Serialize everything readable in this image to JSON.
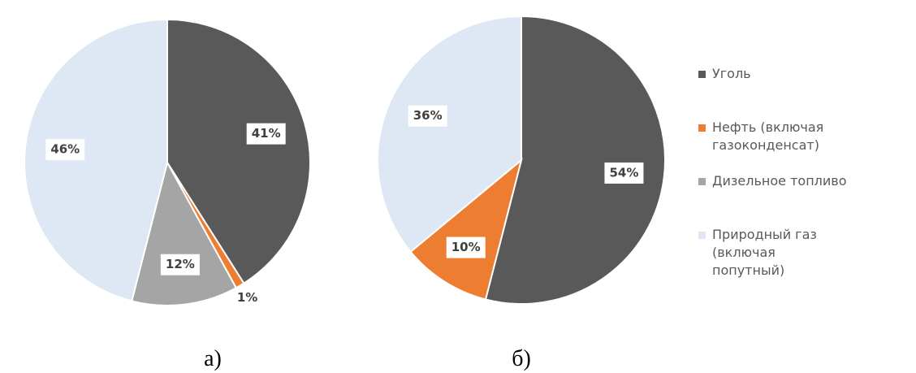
{
  "chart_data": [
    {
      "type": "pie",
      "title": "а)",
      "categories": [
        "Уголь",
        "Нефть (включая газоконденсат)",
        "Дизельное топливо",
        "Природный газ (включая попутный)"
      ],
      "values": [
        41,
        1,
        12,
        46
      ],
      "value_labels": [
        "41%",
        "1%",
        "12%",
        "46%"
      ],
      "colors": [
        "#595959",
        "#ed7d31",
        "#a5a5a5",
        "#dde8f4"
      ],
      "legend": "right"
    },
    {
      "type": "pie",
      "title": "б)",
      "categories": [
        "Уголь",
        "Нефть (включая газоконденсат)",
        "Природный газ (включая попутный)"
      ],
      "values": [
        54,
        10,
        36
      ],
      "value_labels": [
        "54%",
        "10%",
        "36%"
      ],
      "colors": [
        "#595959",
        "#ed7d31",
        "#dde8f4"
      ]
    }
  ]
}
